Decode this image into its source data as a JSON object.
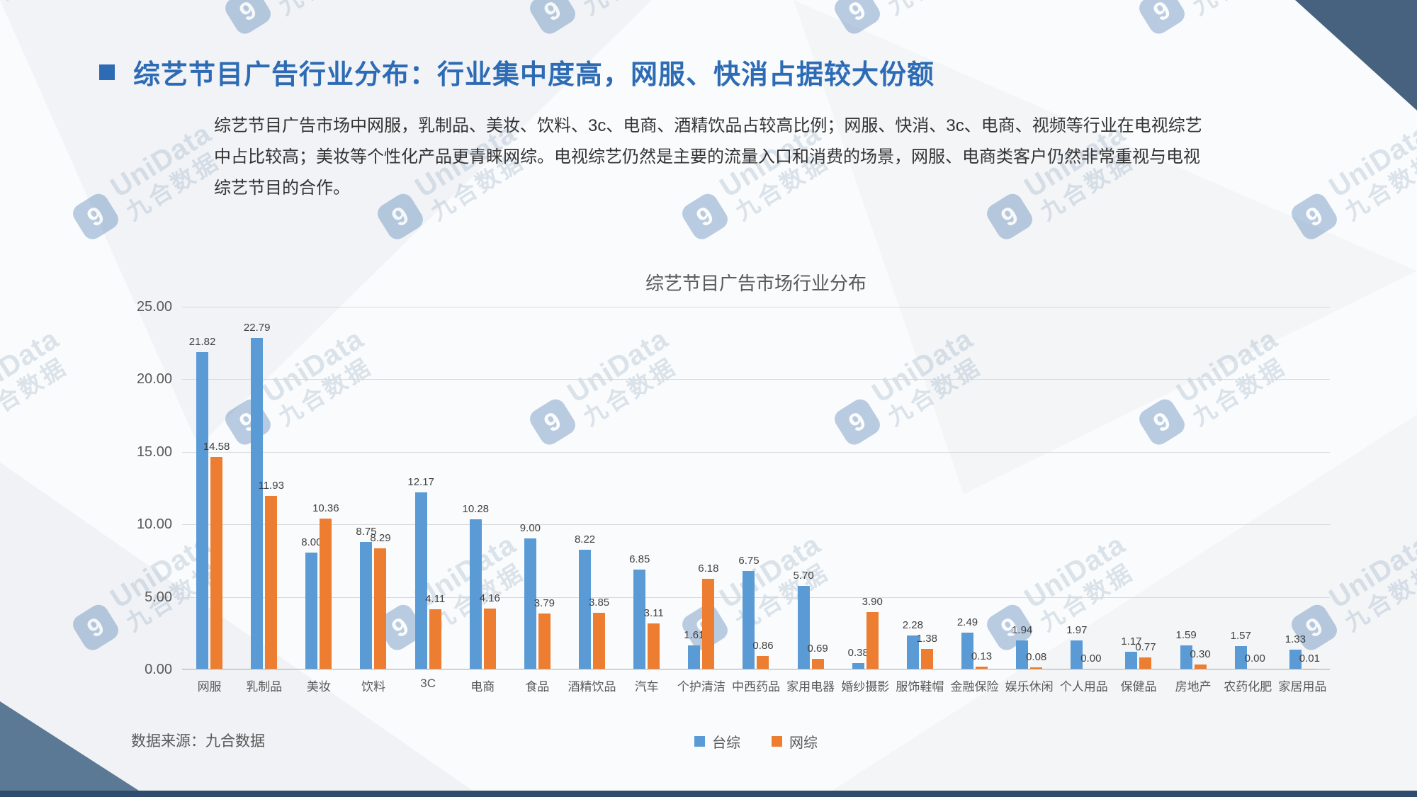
{
  "slide": {
    "title": "综艺节目广告行业分布：行业集中度高，网服、快消占据较大份额",
    "body_text": "综艺节目广告市场中网服，乳制品、美妆、饮料、3c、电商、酒精饮品占较高比例；网服、快消、3c、电商、视频等行业在电视综艺中占比较高；美妆等个性化产品更青睐网综。电视综艺仍然是主要的流量入口和消费的场景，网服、电商类客户仍然非常重视与电视综艺节目的合作。",
    "source_note": "数据来源：九合数据"
  },
  "watermark": {
    "logo_glyph": "9",
    "line1": "UniData",
    "line2": "九合数据"
  },
  "colors": {
    "title_blue": "#2d6cb5",
    "bar_blue": "#5b9bd5",
    "bar_orange": "#ed7d31",
    "corner_dark": "#46627f",
    "corner_slate": "#5b7894",
    "bottom_bar": "#2e4d6c",
    "axis_text": "#595959",
    "gridline": "#d9d9d9"
  },
  "chart_data": {
    "type": "bar",
    "title": "综艺节目广告市场行业分布",
    "categories": [
      "网服",
      "乳制品",
      "美妆",
      "饮料",
      "3C",
      "电商",
      "食品",
      "酒精饮品",
      "汽车",
      "个护清洁",
      "中西药品",
      "家用电器",
      "婚纱摄影",
      "服饰鞋帽",
      "金融保险",
      "娱乐休闲",
      "个人用品",
      "保健品",
      "房地产",
      "农药化肥",
      "家居用品"
    ],
    "series": [
      {
        "name": "台综",
        "color": "#5b9bd5",
        "values": [
          21.82,
          22.79,
          8.0,
          8.75,
          12.17,
          10.28,
          9.0,
          8.22,
          6.85,
          1.61,
          6.75,
          5.7,
          0.38,
          2.28,
          2.49,
          1.94,
          1.97,
          1.17,
          1.59,
          1.57,
          1.33
        ]
      },
      {
        "name": "网综",
        "color": "#ed7d31",
        "values": [
          14.58,
          11.93,
          10.36,
          8.29,
          4.11,
          4.16,
          3.79,
          3.85,
          3.11,
          6.18,
          0.86,
          0.69,
          3.9,
          1.38,
          0.13,
          0.08,
          0.0,
          0.77,
          0.3,
          0.0,
          0.01
        ]
      }
    ],
    "xlabel": "",
    "ylabel": "",
    "ylim": [
      0,
      25
    ],
    "ytick_labels": [
      "0.00",
      "5.00",
      "10.00",
      "15.00",
      "20.00",
      "25.00"
    ],
    "grid": true,
    "legend_position": "bottom",
    "value_label_decimals": 2
  }
}
